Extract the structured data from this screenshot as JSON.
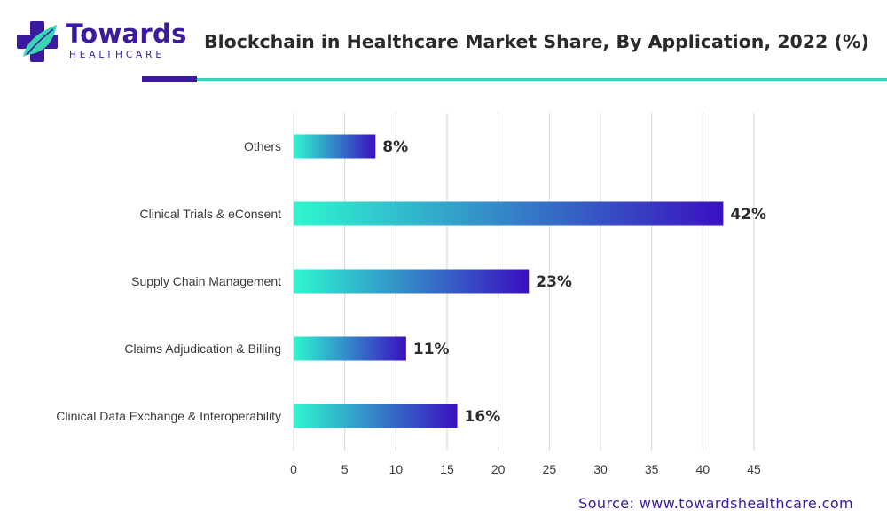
{
  "logo": {
    "name": "Towards",
    "sub": "HEALTHCARE"
  },
  "title": "Blockchain in Healthcare Market Share, By Application, 2022 (%)",
  "source": "Source: www.towardshealthcare.com",
  "colors": {
    "brand": "#3b1aa0",
    "accent": "#38d4b4",
    "bar_start": "#2ef7cf",
    "bar_end": "#3a10c0",
    "grid": "#d6d6d6"
  },
  "chart_data": {
    "type": "bar",
    "orientation": "horizontal",
    "categories": [
      "Others",
      "Clinical Trials & eConsent",
      "Supply Chain Management",
      "Claims Adjudication & Billing",
      "Clinical Data Exchange & Interoperability"
    ],
    "values": [
      8,
      42,
      23,
      11,
      16
    ],
    "data_labels": [
      "8%",
      "42%",
      "23%",
      "11%",
      "16%"
    ],
    "xlim": [
      0,
      45
    ],
    "xticks": [
      0,
      5,
      10,
      15,
      20,
      25,
      30,
      35,
      40,
      45
    ],
    "grid": true,
    "xlabel": "",
    "ylabel": ""
  }
}
